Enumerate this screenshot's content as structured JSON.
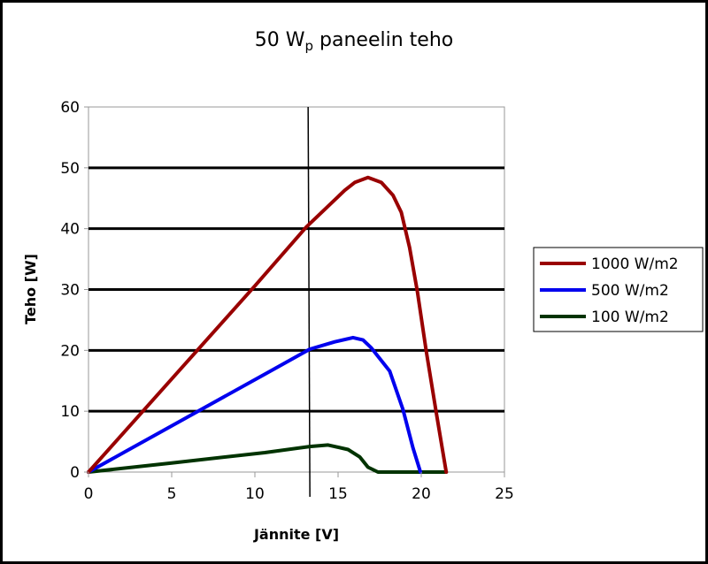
{
  "chart_data": {
    "type": "line",
    "title": "50 W",
    "title_subscript": "p",
    "title_rest": " paneelin teho",
    "xlabel": "Jännite [V]",
    "ylabel": "Teho [W]",
    "xlim": [
      0,
      25
    ],
    "ylim": [
      0,
      60
    ],
    "xticks": [
      0,
      5,
      10,
      15,
      20,
      25
    ],
    "yticks": [
      0,
      10,
      20,
      30,
      40,
      50,
      60
    ],
    "grid": "horizontal",
    "legend_position": "right",
    "vertical_line_x": 13.2,
    "series": [
      {
        "name": "1000 W/m2",
        "color": "#990000",
        "x": [
          0,
          5,
          10,
          13.1,
          15.4,
          16.0,
          16.8,
          17.6,
          18.3,
          18.8,
          19.3,
          19.77,
          20.3,
          20.9,
          21.5
        ],
        "y": [
          0,
          15.3,
          30.6,
          40.3,
          46.3,
          47.6,
          48.4,
          47.6,
          45.5,
          42.7,
          36.9,
          29.6,
          19.9,
          9.8,
          0
        ]
      },
      {
        "name": "500 W/m2",
        "color": "#0000EE",
        "x": [
          0,
          5,
          10.6,
          13.3,
          14.8,
          15.9,
          16.5,
          17.0,
          18.1,
          18.9,
          19.5,
          19.95
        ],
        "y": [
          0,
          7.6,
          16.1,
          20.2,
          21.4,
          22.1,
          21.7,
          20.4,
          16.6,
          10.3,
          4.0,
          0
        ]
      },
      {
        "name": "100 W/m2",
        "color": "#003300",
        "x": [
          0,
          5,
          10.6,
          13.3,
          14.4,
          15.6,
          16.3,
          16.8,
          17.4,
          21.5
        ],
        "y": [
          0,
          1.5,
          3.2,
          4.2,
          4.45,
          3.7,
          2.5,
          0.8,
          0,
          0
        ]
      }
    ]
  }
}
